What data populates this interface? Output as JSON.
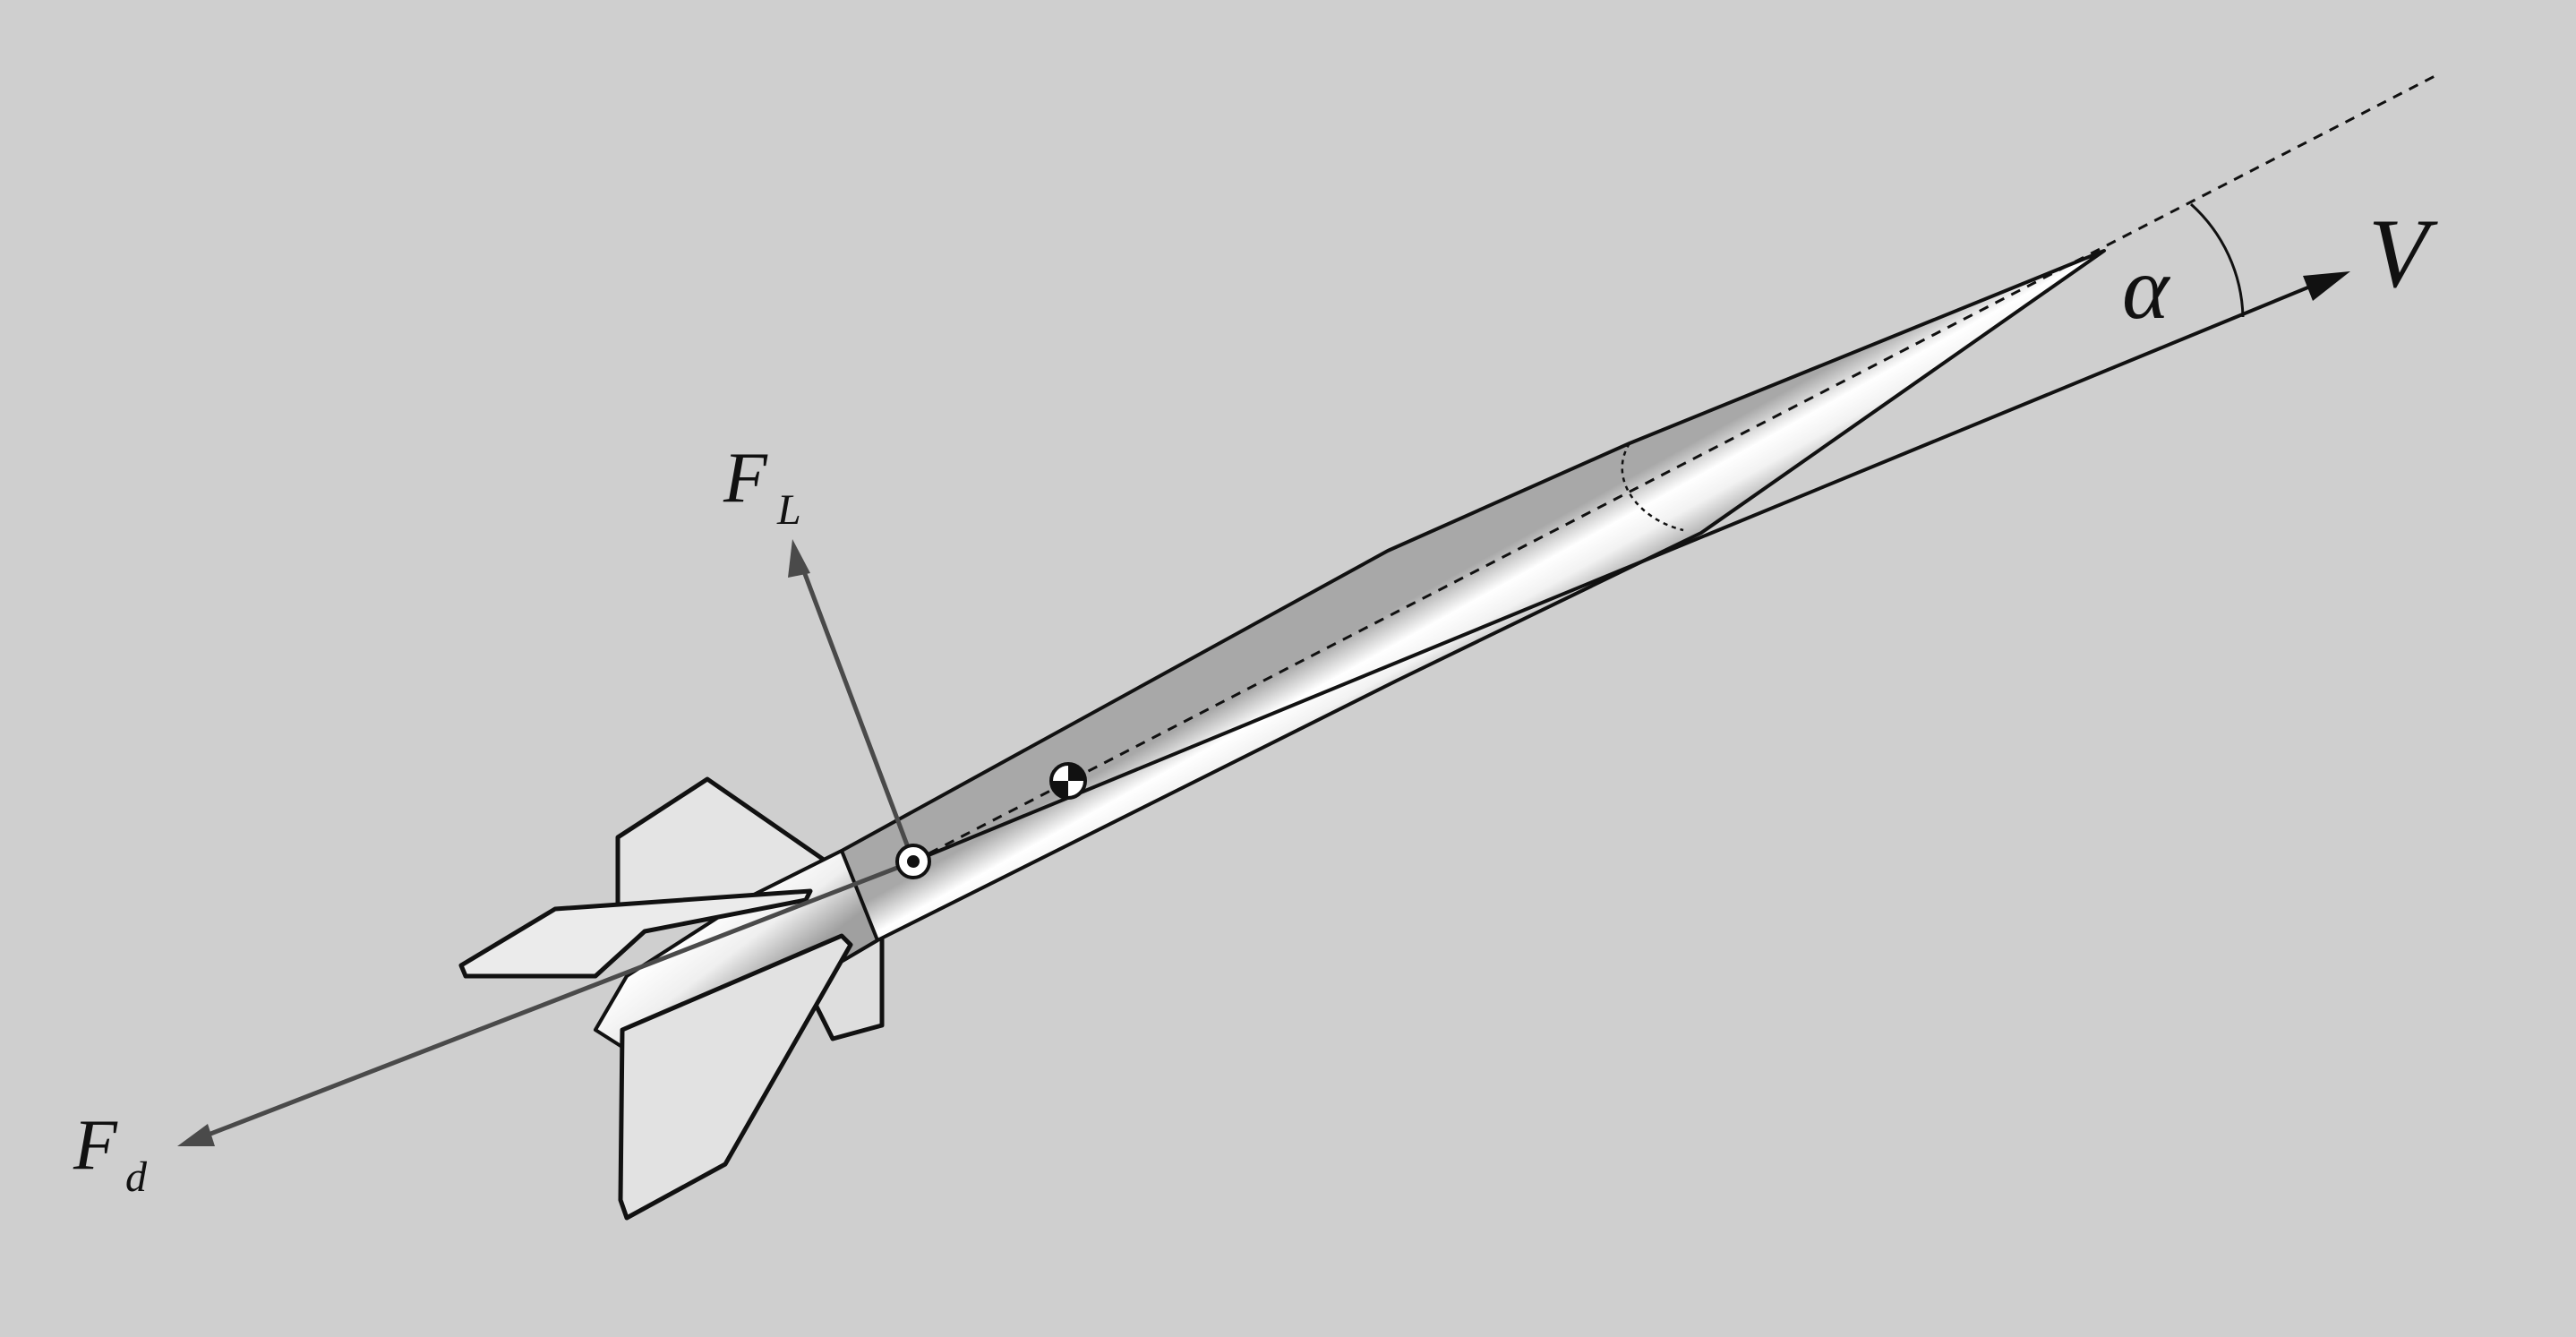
{
  "diagram": {
    "labels": {
      "velocity": "V",
      "angle_of_attack": "α",
      "lift_main": "F",
      "lift_sub": "L",
      "drag_main": "F",
      "drag_sub": "d"
    },
    "elements": {
      "rocket": "model-rocket",
      "center_of_gravity": "cg-symbol",
      "center_of_pressure": "cp-symbol",
      "body_axis": "dashed-line",
      "velocity_vector": "arrow",
      "lift_vector": "arrow",
      "drag_vector": "arrow"
    },
    "colors": {
      "background": "#cfcfcf",
      "outline": "#111111",
      "force_arrow": "#4a4a4a",
      "fin_fill": "#e4e4e4"
    }
  }
}
